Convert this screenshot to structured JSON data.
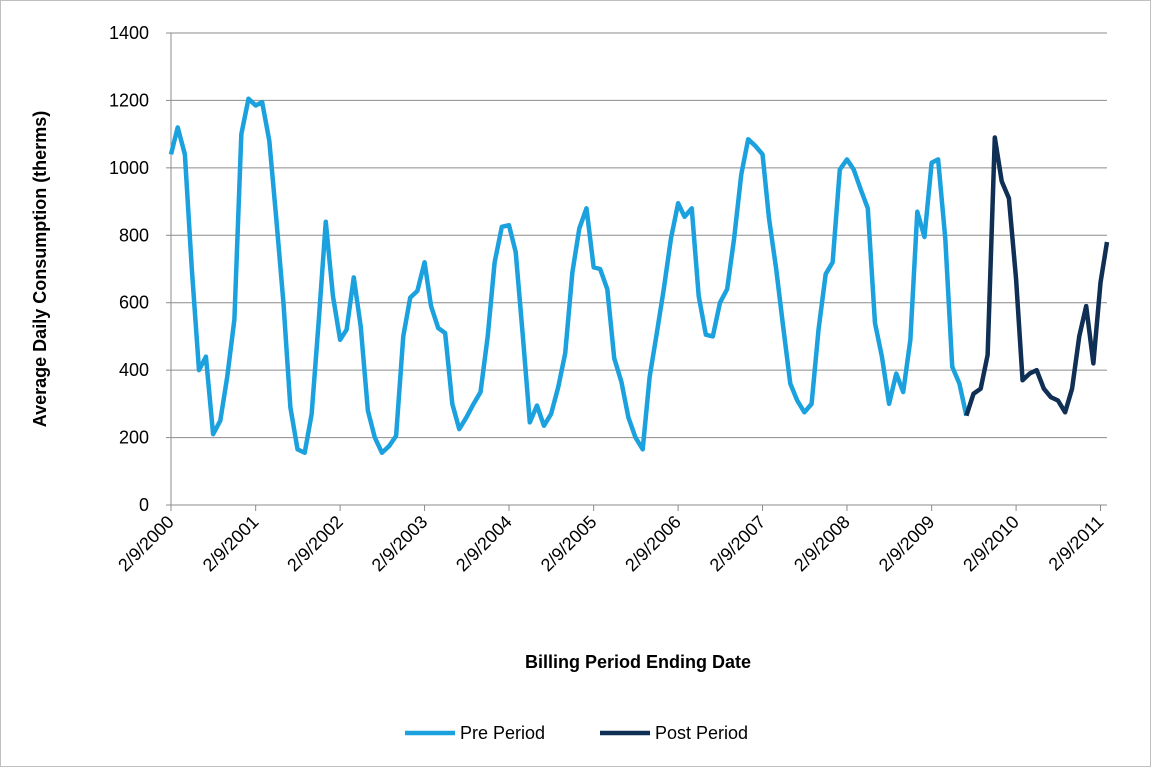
{
  "chart_data": {
    "type": "line",
    "x_label": "Billing Period Ending Date",
    "y_label": "Average Daily Consumption (therms)",
    "x": [
      "2/9/2000",
      "3/9/2000",
      "4/9/2000",
      "5/9/2000",
      "6/9/2000",
      "7/9/2000",
      "8/9/2000",
      "9/9/2000",
      "10/9/2000",
      "11/9/2000",
      "12/9/2000",
      "1/9/2001",
      "2/9/2001",
      "3/9/2001",
      "4/9/2001",
      "5/9/2001",
      "6/9/2001",
      "7/9/2001",
      "8/9/2001",
      "9/9/2001",
      "10/9/2001",
      "11/9/2001",
      "12/9/2001",
      "1/9/2002",
      "2/9/2002",
      "3/9/2002",
      "4/9/2002",
      "5/9/2002",
      "6/9/2002",
      "7/9/2002",
      "8/9/2002",
      "9/9/2002",
      "10/9/2002",
      "11/9/2002",
      "12/9/2002",
      "1/9/2003",
      "2/9/2003",
      "3/9/2003",
      "4/9/2003",
      "5/9/2003",
      "6/9/2003",
      "7/9/2003",
      "8/9/2003",
      "9/9/2003",
      "10/9/2003",
      "11/9/2003",
      "12/9/2003",
      "1/9/2004",
      "2/9/2004",
      "3/9/2004",
      "4/9/2004",
      "5/9/2004",
      "6/9/2004",
      "7/9/2004",
      "8/9/2004",
      "9/9/2004",
      "10/9/2004",
      "11/9/2004",
      "12/9/2004",
      "1/9/2005",
      "2/9/2005",
      "3/9/2005",
      "4/9/2005",
      "5/9/2005",
      "6/9/2005",
      "7/9/2005",
      "8/9/2005",
      "9/9/2005",
      "10/9/2005",
      "11/9/2005",
      "12/9/2005",
      "1/9/2006",
      "2/9/2006",
      "3/9/2006",
      "4/9/2006",
      "5/9/2006",
      "6/9/2006",
      "7/9/2006",
      "8/9/2006",
      "9/9/2006",
      "10/9/2006",
      "11/9/2006",
      "12/9/2006",
      "1/9/2007",
      "2/9/2007",
      "3/9/2007",
      "4/9/2007",
      "5/9/2007",
      "6/9/2007",
      "7/9/2007",
      "8/9/2007",
      "9/9/2007",
      "10/9/2007",
      "11/9/2007",
      "12/9/2007",
      "1/9/2008",
      "2/9/2008",
      "3/9/2008",
      "4/9/2008",
      "5/9/2008",
      "6/9/2008",
      "7/9/2008",
      "8/9/2008",
      "9/9/2008",
      "10/9/2008",
      "11/9/2008",
      "12/9/2008",
      "1/9/2009",
      "2/9/2009",
      "3/9/2009",
      "4/9/2009",
      "5/9/2009",
      "6/9/2009",
      "7/9/2009",
      "8/9/2009",
      "9/9/2009",
      "10/9/2009",
      "11/9/2009",
      "12/9/2009",
      "1/9/2010",
      "2/9/2010",
      "3/9/2010",
      "4/9/2010",
      "5/9/2010",
      "6/9/2010",
      "7/9/2010",
      "8/9/2010",
      "9/9/2010",
      "10/9/2010",
      "11/9/2010",
      "12/9/2010",
      "1/9/2011",
      "2/9/2011",
      "3/9/2011"
    ],
    "series": [
      {
        "name": "Pre Period",
        "color": "#1ba1de",
        "values": [
          1040,
          1120,
          1040,
          700,
          400,
          440,
          210,
          250,
          380,
          550,
          1100,
          1205,
          1185,
          1195,
          1080,
          850,
          600,
          290,
          165,
          155,
          270,
          550,
          840,
          620,
          490,
          520,
          675,
          530,
          280,
          200,
          155,
          175,
          205,
          500,
          615,
          635,
          720,
          590,
          525,
          510,
          300,
          225,
          260,
          300,
          335,
          500,
          720,
          825,
          830,
          750,
          500,
          245,
          295,
          235,
          270,
          350,
          450,
          690,
          820,
          880,
          705,
          700,
          640,
          435,
          365,
          260,
          200,
          165,
          380,
          510,
          640,
          790,
          895,
          855,
          880,
          620,
          505,
          500,
          600,
          640,
          790,
          980,
          1085,
          1065,
          1040,
          850,
          700,
          530,
          360,
          310,
          275,
          300,
          520,
          685,
          720,
          995,
          1025,
          995,
          935,
          880,
          540,
          440,
          300,
          390,
          335,
          490,
          870,
          795,
          1015,
          1025,
          790,
          410,
          360,
          265,
          null,
          null,
          null,
          null,
          null,
          null,
          null,
          null,
          null,
          null,
          null,
          null,
          null,
          null,
          null,
          null,
          null,
          null,
          null,
          null
        ]
      },
      {
        "name": "Post Period",
        "color": "#0f2f55",
        "values": [
          null,
          null,
          null,
          null,
          null,
          null,
          null,
          null,
          null,
          null,
          null,
          null,
          null,
          null,
          null,
          null,
          null,
          null,
          null,
          null,
          null,
          null,
          null,
          null,
          null,
          null,
          null,
          null,
          null,
          null,
          null,
          null,
          null,
          null,
          null,
          null,
          null,
          null,
          null,
          null,
          null,
          null,
          null,
          null,
          null,
          null,
          null,
          null,
          null,
          null,
          null,
          null,
          null,
          null,
          null,
          null,
          null,
          null,
          null,
          null,
          null,
          null,
          null,
          null,
          null,
          null,
          null,
          null,
          null,
          null,
          null,
          null,
          null,
          null,
          null,
          null,
          null,
          null,
          null,
          null,
          null,
          null,
          null,
          null,
          null,
          null,
          null,
          null,
          null,
          null,
          null,
          null,
          null,
          null,
          null,
          null,
          null,
          null,
          null,
          null,
          null,
          null,
          null,
          null,
          null,
          null,
          null,
          null,
          null,
          null,
          null,
          null,
          null,
          265,
          330,
          345,
          445,
          1090,
          960,
          910,
          670,
          370,
          390,
          400,
          345,
          320,
          310,
          275,
          345,
          500,
          590,
          420,
          660,
          780
        ]
      }
    ],
    "xlim": [
      "2/9/2000",
      "3/9/2011"
    ],
    "xticks": [
      "2/9/2000",
      "2/9/2001",
      "2/9/2002",
      "2/9/2003",
      "2/9/2004",
      "2/9/2005",
      "2/9/2006",
      "2/9/2007",
      "2/9/2008",
      "2/9/2009",
      "2/9/2010",
      "2/9/2011"
    ],
    "ylim": [
      0,
      1400
    ],
    "yticks": [
      0,
      200,
      400,
      600,
      800,
      1000,
      1200,
      1400
    ],
    "grid": true,
    "legend": "bottom"
  }
}
